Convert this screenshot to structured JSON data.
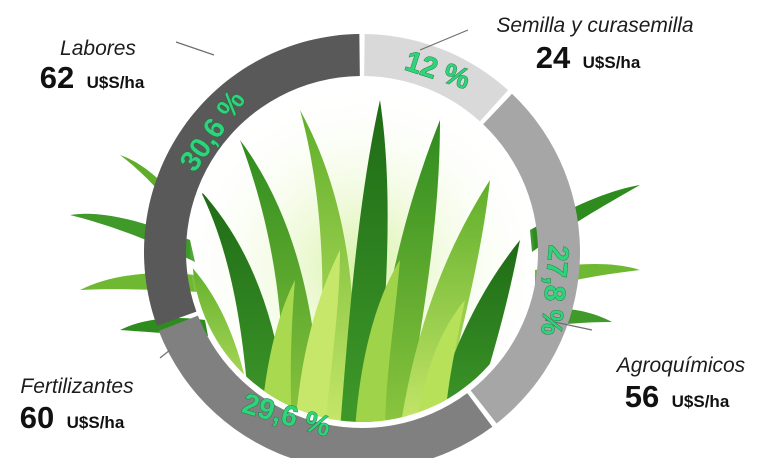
{
  "chart_data": {
    "type": "pie",
    "variant": "donut",
    "unit": "U$S/ha",
    "categories": [
      "Semilla y curasemilla",
      "Agroquímicos",
      "Fertilizantes",
      "Labores"
    ],
    "values": [
      24,
      56,
      60,
      62
    ],
    "value_labels": [
      "24",
      "56",
      "60",
      "62"
    ],
    "percent_labels": [
      "12 %",
      "27,8 %",
      "29,6 %",
      "30,6 %"
    ],
    "segment_colors": [
      "#d9d9d9",
      "#a6a6a6",
      "#808080",
      "#595959"
    ],
    "percent_label_color": "#2ed47a",
    "center_image": "grass-icon",
    "legend": "none"
  }
}
